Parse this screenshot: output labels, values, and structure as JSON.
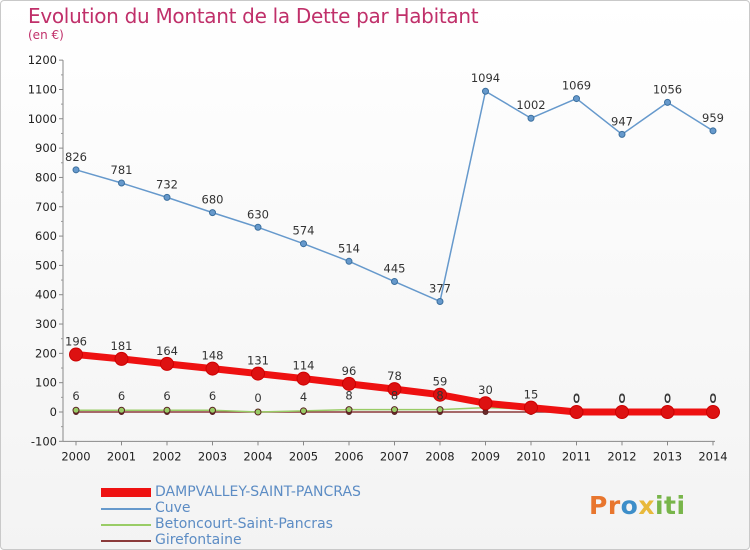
{
  "title": "Evolution du Montant de la Dette par Habitant",
  "subtitle": "(en €)",
  "logo": {
    "part1": "Pr",
    "part2": "o",
    "part3": "x",
    "part4": "iti"
  },
  "colors": {
    "title": "#c0306a",
    "axis": "#888888",
    "legend_text": "#5c8cc4"
  },
  "chart_data": {
    "type": "line",
    "title": "Evolution du Montant de la Dette par Habitant",
    "subtitle": "(en €)",
    "xlabel": "",
    "ylabel": "",
    "x": [
      "2000",
      "2001",
      "2002",
      "2003",
      "2004",
      "2005",
      "2006",
      "2007",
      "2008",
      "2009",
      "2010",
      "2011",
      "2012",
      "2013",
      "2014"
    ],
    "ylim": [
      -100,
      1200
    ],
    "yticks": [
      -100,
      0,
      100,
      200,
      300,
      400,
      500,
      600,
      700,
      800,
      900,
      1000,
      1100,
      1200
    ],
    "grid": false,
    "legend_position": "bottom",
    "series": [
      {
        "name": "DAMPVALLEY-SAINT-PANCRAS",
        "color": "#ee1111",
        "values": [
          196,
          181,
          164,
          148,
          131,
          114,
          96,
          78,
          59,
          30,
          15,
          0,
          0,
          0,
          0
        ],
        "labels": [
          "196",
          "181",
          "164",
          "148",
          "131",
          "114",
          "96",
          "78",
          "59",
          "30",
          "15",
          "0",
          "0",
          "0",
          "0"
        ]
      },
      {
        "name": "Cuve",
        "color": "#6699cc",
        "values": [
          826,
          781,
          732,
          680,
          630,
          574,
          514,
          445,
          377,
          1094,
          1002,
          1069,
          947,
          1056,
          959
        ],
        "labels": [
          "826",
          "781",
          "732",
          "680",
          "630",
          "574",
          "514",
          "445",
          "377",
          "1094",
          "1002",
          "1069",
          "947",
          "1056",
          "959"
        ]
      },
      {
        "name": "Betoncourt-Saint-Pancras",
        "color": "#99cc66",
        "values": [
          6,
          6,
          6,
          6,
          0,
          4,
          8,
          8,
          8,
          15,
          10,
          0,
          0,
          0,
          0
        ],
        "labels": [
          "6",
          "6",
          "6",
          "6",
          "0",
          "4",
          "8",
          "8",
          "8",
          "",
          "",
          "0",
          "0",
          "0",
          "0"
        ]
      },
      {
        "name": "Girefontaine",
        "color": "#8b3a3a",
        "values": [
          0,
          0,
          0,
          0,
          0,
          0,
          0,
          0,
          0,
          0,
          0,
          0,
          0,
          0,
          0
        ],
        "labels": []
      }
    ]
  }
}
